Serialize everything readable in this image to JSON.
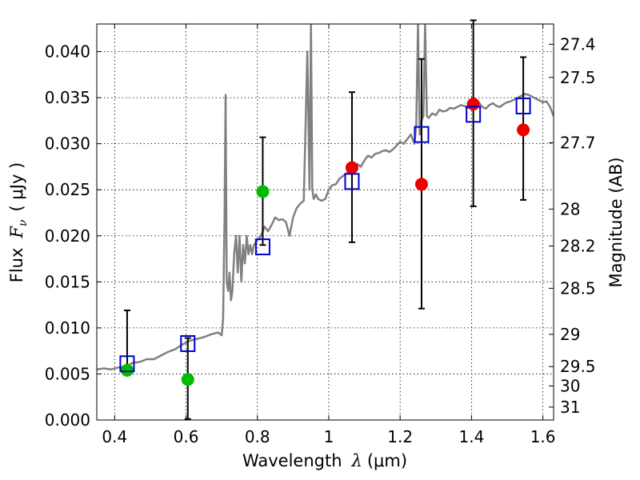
{
  "chart_data": {
    "type": "scatter",
    "title": "",
    "xlabel": "Wavelength",
    "xlabel_symbol": "λ",
    "xlabel_unit": "(μm)",
    "ylabel": "Flux",
    "ylabel_symbol": "F",
    "ylabel_sub": "ν",
    "ylabel_unit": "( μJy )",
    "y2label": "Magnitude (AB)",
    "xlim": [
      0.35,
      1.63
    ],
    "ylim": [
      0.0,
      0.043
    ],
    "grid": true,
    "x_ticks": [
      0.4,
      0.6,
      0.8,
      1.0,
      1.2,
      1.4,
      1.6
    ],
    "x_tick_labels": [
      "0.4",
      "0.6",
      "0.8",
      "1",
      "1.2",
      "1.4",
      "1.6"
    ],
    "y_ticks": [
      0.0,
      0.005,
      0.01,
      0.015,
      0.02,
      0.025,
      0.03,
      0.035,
      0.04
    ],
    "y_tick_labels": [
      "0.000",
      "0.005",
      "0.010",
      "0.015",
      "0.020",
      "0.025",
      "0.030",
      "0.035",
      "0.040"
    ],
    "y2_ticks": [
      {
        "label": "27.4",
        "flux": 0.0408
      },
      {
        "label": "27.5",
        "flux": 0.0372
      },
      {
        "label": "27.7",
        "flux": 0.0301
      },
      {
        "label": "28",
        "flux": 0.0229
      },
      {
        "label": "28.2",
        "flux": 0.0189
      },
      {
        "label": "28.5",
        "flux": 0.0143
      },
      {
        "label": "29",
        "flux": 0.0093
      },
      {
        "label": "29.5",
        "flux": 0.0058
      },
      {
        "label": "30",
        "flux": 0.0037
      },
      {
        "label": "31",
        "flux": 0.0014
      }
    ],
    "colors": {
      "model": "#808080",
      "model_photometry": "#0000cc",
      "observed_green": "#00bb00",
      "observed_red": "#ee0000",
      "errorbar": "#000000",
      "grid": "#000000"
    },
    "model_spectrum": {
      "x": [
        0.35,
        0.37,
        0.39,
        0.41,
        0.43,
        0.45,
        0.47,
        0.49,
        0.51,
        0.53,
        0.55,
        0.57,
        0.59,
        0.61,
        0.63,
        0.65,
        0.67,
        0.69,
        0.7,
        0.704,
        0.708,
        0.711,
        0.714,
        0.718,
        0.722,
        0.726,
        0.73,
        0.735,
        0.74,
        0.745,
        0.75,
        0.755,
        0.76,
        0.765,
        0.77,
        0.775,
        0.78,
        0.785,
        0.79,
        0.8,
        0.81,
        0.82,
        0.83,
        0.84,
        0.85,
        0.86,
        0.87,
        0.88,
        0.89,
        0.9,
        0.91,
        0.92,
        0.93,
        0.94,
        0.946,
        0.95,
        0.954,
        0.958,
        0.964,
        0.97,
        0.98,
        0.99,
        1.0,
        1.01,
        1.02,
        1.03,
        1.04,
        1.05,
        1.06,
        1.07,
        1.08,
        1.09,
        1.1,
        1.11,
        1.12,
        1.13,
        1.14,
        1.15,
        1.16,
        1.17,
        1.18,
        1.19,
        1.2,
        1.21,
        1.22,
        1.23,
        1.24,
        1.245,
        1.25,
        1.255,
        1.26,
        1.265,
        1.27,
        1.275,
        1.28,
        1.29,
        1.3,
        1.31,
        1.32,
        1.33,
        1.34,
        1.35,
        1.36,
        1.37,
        1.38,
        1.39,
        1.4,
        1.41,
        1.42,
        1.43,
        1.44,
        1.45,
        1.46,
        1.47,
        1.48,
        1.49,
        1.5,
        1.51,
        1.52,
        1.53,
        1.54,
        1.55,
        1.56,
        1.57,
        1.58,
        1.59,
        1.6,
        1.61,
        1.62,
        1.63
      ],
      "y": [
        0.0055,
        0.0056,
        0.0055,
        0.0057,
        0.0058,
        0.0062,
        0.0063,
        0.0066,
        0.0066,
        0.007,
        0.0074,
        0.0077,
        0.0082,
        0.0086,
        0.0088,
        0.009,
        0.0093,
        0.0095,
        0.0092,
        0.011,
        0.022,
        0.0353,
        0.015,
        0.014,
        0.016,
        0.013,
        0.014,
        0.018,
        0.02,
        0.016,
        0.02,
        0.015,
        0.019,
        0.017,
        0.02,
        0.018,
        0.019,
        0.018,
        0.019,
        0.0195,
        0.02,
        0.021,
        0.0205,
        0.0212,
        0.022,
        0.0217,
        0.0218,
        0.0215,
        0.02,
        0.022,
        0.023,
        0.0235,
        0.0238,
        0.04,
        0.025,
        0.043,
        0.025,
        0.024,
        0.0245,
        0.024,
        0.0238,
        0.024,
        0.025,
        0.0255,
        0.0256,
        0.0262,
        0.0265,
        0.0268,
        0.0272,
        0.0274,
        0.0278,
        0.0275,
        0.0282,
        0.0287,
        0.0285,
        0.0289,
        0.029,
        0.0292,
        0.0293,
        0.0291,
        0.0294,
        0.0298,
        0.0302,
        0.03,
        0.0305,
        0.031,
        0.03,
        0.032,
        0.043,
        0.031,
        0.0325,
        0.033,
        0.043,
        0.033,
        0.0328,
        0.0333,
        0.0331,
        0.0337,
        0.0335,
        0.0336,
        0.0339,
        0.0338,
        0.034,
        0.0342,
        0.0341,
        0.0339,
        0.034,
        0.0343,
        0.0345,
        0.034,
        0.0338,
        0.0342,
        0.0344,
        0.0341,
        0.034,
        0.0343,
        0.0345,
        0.0346,
        0.0348,
        0.035,
        0.0352,
        0.0354,
        0.0353,
        0.0351,
        0.0349,
        0.0347,
        0.0345,
        0.0346,
        0.034,
        0.033
      ]
    },
    "series": [
      {
        "role": "model photometry",
        "marker": "open-square",
        "x": [
          0.435,
          0.605,
          0.815,
          1.065,
          1.26,
          1.405,
          1.545
        ],
        "y": [
          0.0061,
          0.0083,
          0.0188,
          0.0259,
          0.031,
          0.0332,
          0.0341
        ]
      },
      {
        "role": "observed",
        "marker": "filled-circle",
        "x": [
          0.435,
          0.605,
          0.815,
          1.065,
          1.26,
          1.405,
          1.545
        ],
        "y": [
          0.0054,
          0.0044,
          0.0248,
          0.0274,
          0.0256,
          0.0343,
          0.0315
        ],
        "yerr_low": [
          0.0,
          0.0043,
          0.0058,
          0.0081,
          0.0135,
          0.0111,
          0.0076
        ],
        "yerr_high": [
          0.0065,
          0.0045,
          0.0059,
          0.0082,
          0.0136,
          0.0091,
          0.0079
        ],
        "colors": [
          "observed_green",
          "observed_green",
          "observed_green",
          "observed_red",
          "observed_red",
          "observed_red",
          "observed_red"
        ]
      }
    ]
  }
}
